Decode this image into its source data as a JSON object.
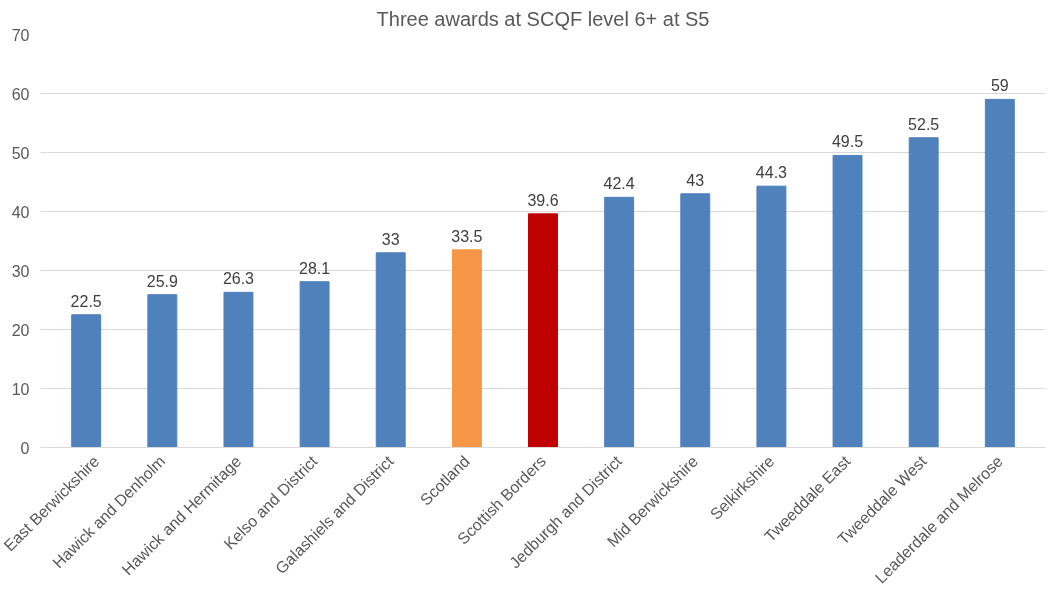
{
  "chart_data": {
    "type": "bar",
    "title": "Three awards at SCQF level 6+ at S5",
    "categories": [
      "East Berwickshire",
      "Hawick and Denholm",
      "Hawick and Hermitage",
      "Kelso and District",
      "Galashiels and District",
      "Scotland",
      "Scottish Borders",
      "Jedburgh and District",
      "Mid Berwickshire",
      "Selkirkshire",
      "Tweeddale East",
      "Tweeddale West",
      "Leaderdale and Melrose"
    ],
    "values": [
      22.5,
      25.9,
      26.3,
      28.1,
      33,
      33.5,
      39.6,
      42.4,
      43,
      44.3,
      49.5,
      52.5,
      59
    ],
    "colors": [
      "#4f81bd",
      "#4f81bd",
      "#4f81bd",
      "#4f81bd",
      "#4f81bd",
      "#f79646",
      "#c00000",
      "#4f81bd",
      "#4f81bd",
      "#4f81bd",
      "#4f81bd",
      "#4f81bd",
      "#4f81bd"
    ],
    "ylim": [
      0,
      70
    ],
    "yticks": [
      0,
      10,
      20,
      30,
      40,
      50,
      60,
      70
    ],
    "grid": "y",
    "data_labels": true
  }
}
